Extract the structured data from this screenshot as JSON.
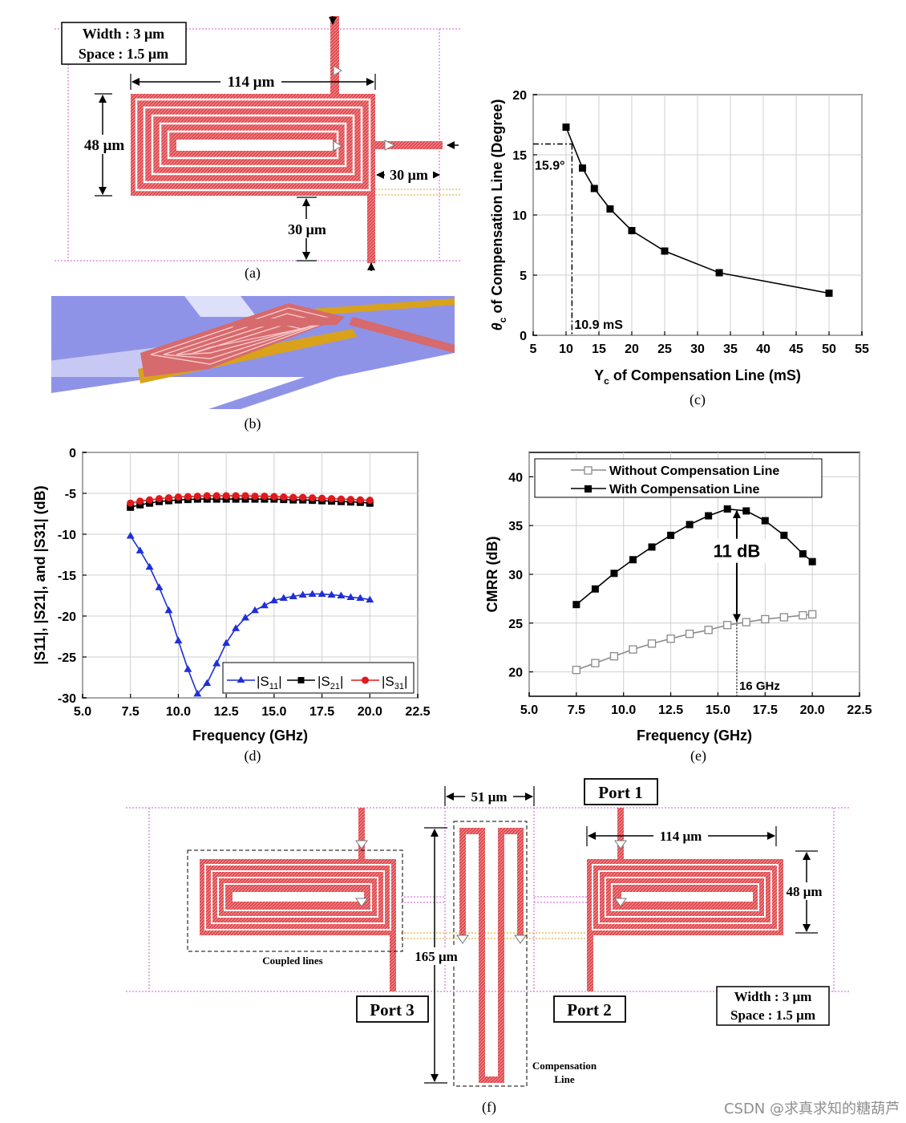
{
  "panel_a": {
    "width_label": "Width : 3 μm",
    "space_label": "Space : 1.5 μm",
    "dim_114": "114 μm",
    "dim_48": "48 μm",
    "dim_30_right": "30 μm",
    "dim_30_bottom": "30 μm",
    "caption": "(a)"
  },
  "panel_b": {
    "caption": "(b)"
  },
  "panel_f": {
    "port1": "Port 1",
    "port2": "Port 2",
    "port3": "Port 3",
    "dim_51": "51 μm",
    "dim_114": "114 μm",
    "dim_48": "48 μm",
    "dim_165": "165 μm",
    "coupled_lines": "Coupled lines",
    "comp_line_1": "Compensation",
    "comp_line_2": "Line",
    "width_label": "Width : 3 μm",
    "space_label": "Space : 1.5 μm",
    "caption": "(f)"
  },
  "watermark": "CSDN @求真求知的糖葫芦",
  "colors": {
    "trace": "#e04a4f",
    "blue": "#1f2fd6",
    "red": "#e0191c",
    "gray": "#8a8a8a",
    "gold": "#d9a21a",
    "plane": "#8f93e8"
  },
  "chart_data": [
    {
      "id": "c",
      "type": "line",
      "caption": "(c)",
      "xlabel_main": "Y",
      "xlabel_sub": "c",
      "xlabel_rest": " of Compensation Line (mS)",
      "ylabel_main": "θ",
      "ylabel_sub": "c",
      "ylabel_rest": " of Compensation Line (Degree)",
      "xlim": [
        5,
        55
      ],
      "ylim": [
        0,
        20
      ],
      "xticks": [
        "5",
        "10",
        "15",
        "20",
        "25",
        "30",
        "35",
        "40",
        "45",
        "50",
        "55"
      ],
      "yticks": [
        "0",
        "5",
        "10",
        "15",
        "20"
      ],
      "series": [
        {
          "name": "theta_c",
          "x": [
            10,
            12.5,
            14.3,
            16.7,
            20,
            25,
            33.3,
            50
          ],
          "y": [
            17.3,
            13.9,
            12.2,
            10.5,
            8.7,
            7.0,
            5.2,
            3.5
          ]
        }
      ],
      "annotation_x_value": 10.9,
      "annotation_y_value": 15.9,
      "annotation_y_label": "15.9°",
      "annotation_x_label": "10.9 mS"
    },
    {
      "id": "d",
      "type": "line",
      "caption": "(d)",
      "xlabel": "Frequency (GHz)",
      "ylabel": "|S11|, |S21|, and |S31| (dB)",
      "xlim": [
        5,
        22.5
      ],
      "ylim": [
        -30,
        0
      ],
      "xticks": [
        "5.0",
        "7.5",
        "10.0",
        "12.5",
        "15.0",
        "17.5",
        "20.0",
        "22.5"
      ],
      "yticks": [
        "0",
        "-5",
        "-10",
        "-15",
        "-20",
        "-25",
        "-30"
      ],
      "legend_position": "bottom-right",
      "series": [
        {
          "name": "|S11|",
          "legend_main": "|S",
          "legend_sub": "11",
          "legend_end": "|",
          "color": "#1f2fd6",
          "marker": "triangle",
          "x": [
            7.5,
            8.0,
            8.5,
            9.0,
            9.5,
            10.0,
            10.5,
            11.0,
            11.5,
            12.0,
            12.5,
            13.0,
            13.5,
            14.0,
            14.5,
            15.0,
            15.5,
            16.0,
            16.5,
            17.0,
            17.5,
            18.0,
            18.5,
            19.0,
            19.5,
            20.0
          ],
          "y": [
            -10.2,
            -12.0,
            -14.0,
            -16.5,
            -19.3,
            -23.0,
            -26.5,
            -29.5,
            -28.2,
            -25.8,
            -23.3,
            -21.5,
            -20.2,
            -19.3,
            -18.7,
            -18.1,
            -17.8,
            -17.6,
            -17.4,
            -17.3,
            -17.3,
            -17.4,
            -17.5,
            -17.7,
            -17.8,
            -18.0
          ]
        },
        {
          "name": "|S21|",
          "legend_main": "|S",
          "legend_sub": "21",
          "legend_end": "|",
          "color": "#000000",
          "marker": "square",
          "x": [
            7.5,
            8.0,
            8.5,
            9.0,
            9.5,
            10.0,
            10.5,
            11.0,
            11.5,
            12.0,
            12.5,
            13.0,
            13.5,
            14.0,
            14.5,
            15.0,
            15.5,
            16.0,
            16.5,
            17.0,
            17.5,
            18.0,
            18.5,
            19.0,
            19.5,
            20.0
          ],
          "y": [
            -6.7,
            -6.4,
            -6.2,
            -6.0,
            -5.9,
            -5.8,
            -5.75,
            -5.7,
            -5.7,
            -5.7,
            -5.7,
            -5.7,
            -5.7,
            -5.7,
            -5.7,
            -5.7,
            -5.75,
            -5.8,
            -5.8,
            -5.85,
            -5.9,
            -5.95,
            -6.0,
            -6.05,
            -6.1,
            -6.2
          ]
        },
        {
          "name": "|S31|",
          "legend_main": "|S",
          "legend_sub": "31",
          "legend_end": "|",
          "color": "#e0191c",
          "marker": "circle",
          "x": [
            7.5,
            8.0,
            8.5,
            9.0,
            9.5,
            10.0,
            10.5,
            11.0,
            11.5,
            12.0,
            12.5,
            13.0,
            13.5,
            14.0,
            14.5,
            15.0,
            15.5,
            16.0,
            16.5,
            17.0,
            17.5,
            18.0,
            18.5,
            19.0,
            19.5,
            20.0
          ],
          "y": [
            -6.2,
            -5.95,
            -5.8,
            -5.65,
            -5.55,
            -5.45,
            -5.4,
            -5.35,
            -5.3,
            -5.3,
            -5.3,
            -5.3,
            -5.3,
            -5.35,
            -5.35,
            -5.4,
            -5.45,
            -5.5,
            -5.5,
            -5.55,
            -5.6,
            -5.65,
            -5.7,
            -5.75,
            -5.8,
            -5.85
          ]
        }
      ]
    },
    {
      "id": "e",
      "type": "line",
      "caption": "(e)",
      "xlabel": "Frequency (GHz)",
      "ylabel": "CMRR (dB)",
      "xlim": [
        5,
        22.5
      ],
      "ylim": [
        17.5,
        42.5
      ],
      "xticks": [
        "5.0",
        "7.5",
        "10.0",
        "12.5",
        "15.0",
        "17.5",
        "20.0",
        "22.5"
      ],
      "yticks": [
        "20",
        "25",
        "30",
        "35",
        "40"
      ],
      "legend_position": "top-left",
      "series": [
        {
          "name": "Without Compensation Line",
          "color": "#8a8a8a",
          "marker": "open-square",
          "x": [
            7.5,
            8.5,
            9.5,
            10.5,
            11.5,
            12.5,
            13.5,
            14.5,
            15.5,
            16.5,
            17.5,
            18.5,
            19.5,
            20.0
          ],
          "y": [
            20.2,
            20.9,
            21.6,
            22.3,
            22.9,
            23.4,
            23.9,
            24.3,
            24.8,
            25.1,
            25.4,
            25.6,
            25.8,
            25.9
          ]
        },
        {
          "name": "With Compensation Line",
          "color": "#000000",
          "marker": "square",
          "x": [
            7.5,
            8.5,
            9.5,
            10.5,
            11.5,
            12.5,
            13.5,
            14.5,
            15.5,
            16.5,
            17.5,
            18.5,
            19.5,
            20.0
          ],
          "y": [
            26.9,
            28.5,
            30.1,
            31.5,
            32.8,
            34.0,
            35.1,
            36.0,
            36.7,
            36.5,
            35.5,
            34.0,
            32.1,
            31.3
          ]
        }
      ],
      "annotation_label": "11 dB",
      "annotation_x_value": 16,
      "annotation_y_from": 36.5,
      "annotation_y_to": 25.2,
      "marker_label": "16 GHz"
    }
  ]
}
